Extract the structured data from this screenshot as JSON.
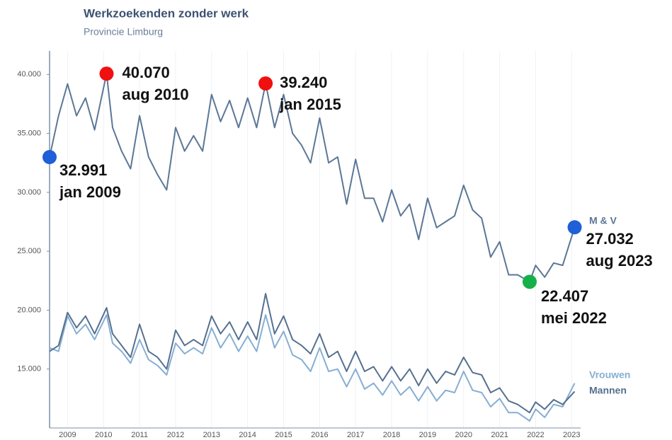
{
  "chart_data": {
    "type": "line",
    "title": "Werkzoekenden zonder werk",
    "subtitle": "Provincie Limburg",
    "x": [
      2009,
      2009.25,
      2009.5,
      2009.75,
      2010,
      2010.25,
      2010.583,
      2010.75,
      2011,
      2011.25,
      2011.5,
      2011.75,
      2012,
      2012.25,
      2012.5,
      2012.75,
      2013,
      2013.25,
      2013.5,
      2013.75,
      2014,
      2014.25,
      2014.5,
      2014.75,
      2015,
      2015.25,
      2015.5,
      2015.75,
      2016,
      2016.25,
      2016.5,
      2016.75,
      2017,
      2017.25,
      2017.5,
      2017.75,
      2018,
      2018.25,
      2018.5,
      2018.75,
      2019,
      2019.25,
      2019.5,
      2019.75,
      2020,
      2020.25,
      2020.5,
      2020.75,
      2021,
      2021.25,
      2021.5,
      2021.75,
      2022,
      2022.333,
      2022.5,
      2022.75,
      2023,
      2023.25,
      2023.583
    ],
    "series": [
      {
        "name": "M & V",
        "color": "#5b7796",
        "values": [
          32991,
          36500,
          39200,
          36500,
          38000,
          35300,
          40070,
          35500,
          33500,
          32000,
          36500,
          33000,
          31500,
          30200,
          35500,
          33500,
          34800,
          33500,
          38300,
          36000,
          37800,
          35500,
          38000,
          35500,
          39240,
          35500,
          38300,
          35000,
          34000,
          32500,
          36300,
          32500,
          33000,
          29000,
          32800,
          29500,
          29500,
          27500,
          30200,
          28000,
          29000,
          26000,
          29500,
          27000,
          27500,
          28000,
          30600,
          28500,
          27800,
          24500,
          25800,
          23000,
          23000,
          22407,
          23800,
          22800,
          24000,
          23800,
          27032
        ]
      },
      {
        "name": "Vrouwen",
        "color": "#86aed3",
        "values": [
          16800,
          16500,
          19500,
          18000,
          18800,
          17500,
          19600,
          17200,
          16500,
          15500,
          17500,
          15800,
          15300,
          14500,
          17200,
          16300,
          16800,
          16300,
          18500,
          16800,
          18000,
          16500,
          17800,
          16500,
          19600,
          16800,
          18200,
          16200,
          15800,
          14800,
          16800,
          14800,
          15000,
          13500,
          15000,
          13300,
          13800,
          12800,
          14000,
          12800,
          13500,
          12300,
          13500,
          12300,
          13200,
          13000,
          14800,
          13200,
          13000,
          11800,
          12500,
          11300,
          11300,
          10600,
          11600,
          10900,
          12000,
          11800,
          13800
        ]
      },
      {
        "name": "Mannen",
        "color": "#56708f",
        "values": [
          16500,
          17000,
          19800,
          18500,
          19500,
          18000,
          20200,
          18000,
          17000,
          16000,
          18800,
          16500,
          16000,
          15000,
          18300,
          17000,
          17500,
          17000,
          19500,
          18000,
          19000,
          17500,
          19000,
          17500,
          21400,
          18000,
          19500,
          17500,
          17000,
          16300,
          18000,
          16000,
          16500,
          14800,
          16500,
          14800,
          15200,
          14000,
          15200,
          14000,
          15000,
          13600,
          15000,
          13800,
          14800,
          14500,
          16000,
          14700,
          14500,
          13000,
          13400,
          12300,
          12000,
          11300,
          12200,
          11600,
          12400,
          12000,
          13100
        ]
      }
    ],
    "annotations": [
      {
        "x": 2009,
        "y": 32991,
        "label": "32.991",
        "date": "jan 2009",
        "color": "#1f5fd8"
      },
      {
        "x": 2010.583,
        "y": 40070,
        "label": "40.070",
        "date": "aug 2010",
        "color": "#f01010"
      },
      {
        "x": 2015,
        "y": 39240,
        "label": "39.240",
        "date": "jan 2015",
        "color": "#f01010"
      },
      {
        "x": 2022.333,
        "y": 22407,
        "label": "22.407",
        "date": "mei 2022",
        "color": "#16b04a"
      },
      {
        "x": 2023.583,
        "y": 27032,
        "label": "27.032",
        "date": "aug 2023",
        "color": "#1f5fd8"
      }
    ],
    "xlim": [
      2009,
      2023.75
    ],
    "xticks": [
      {
        "value": 2009.5,
        "label": "2009"
      },
      {
        "value": 2010.5,
        "label": "2010"
      },
      {
        "value": 2011.5,
        "label": "2011"
      },
      {
        "value": 2012.5,
        "label": "2012"
      },
      {
        "value": 2013.5,
        "label": "2013"
      },
      {
        "value": 2014.5,
        "label": "2014"
      },
      {
        "value": 2015.5,
        "label": "2015"
      },
      {
        "value": 2016.5,
        "label": "2016"
      },
      {
        "value": 2017.5,
        "label": "2017"
      },
      {
        "value": 2018.5,
        "label": "2018"
      },
      {
        "value": 2019.5,
        "label": "2019"
      },
      {
        "value": 2020.5,
        "label": "2020"
      },
      {
        "value": 2021.5,
        "label": "2021"
      },
      {
        "value": 2022.5,
        "label": "2022"
      },
      {
        "value": 2023.5,
        "label": "2023"
      }
    ],
    "ylim": [
      10000,
      42000
    ],
    "yticks": [
      {
        "value": 15000,
        "label": "15.000"
      },
      {
        "value": 20000,
        "label": "20.000"
      },
      {
        "value": 25000,
        "label": "25.000"
      },
      {
        "value": 30000,
        "label": "30.000"
      },
      {
        "value": 35000,
        "label": "35.000"
      },
      {
        "value": 40000,
        "label": "40.000"
      }
    ],
    "grid": true
  }
}
